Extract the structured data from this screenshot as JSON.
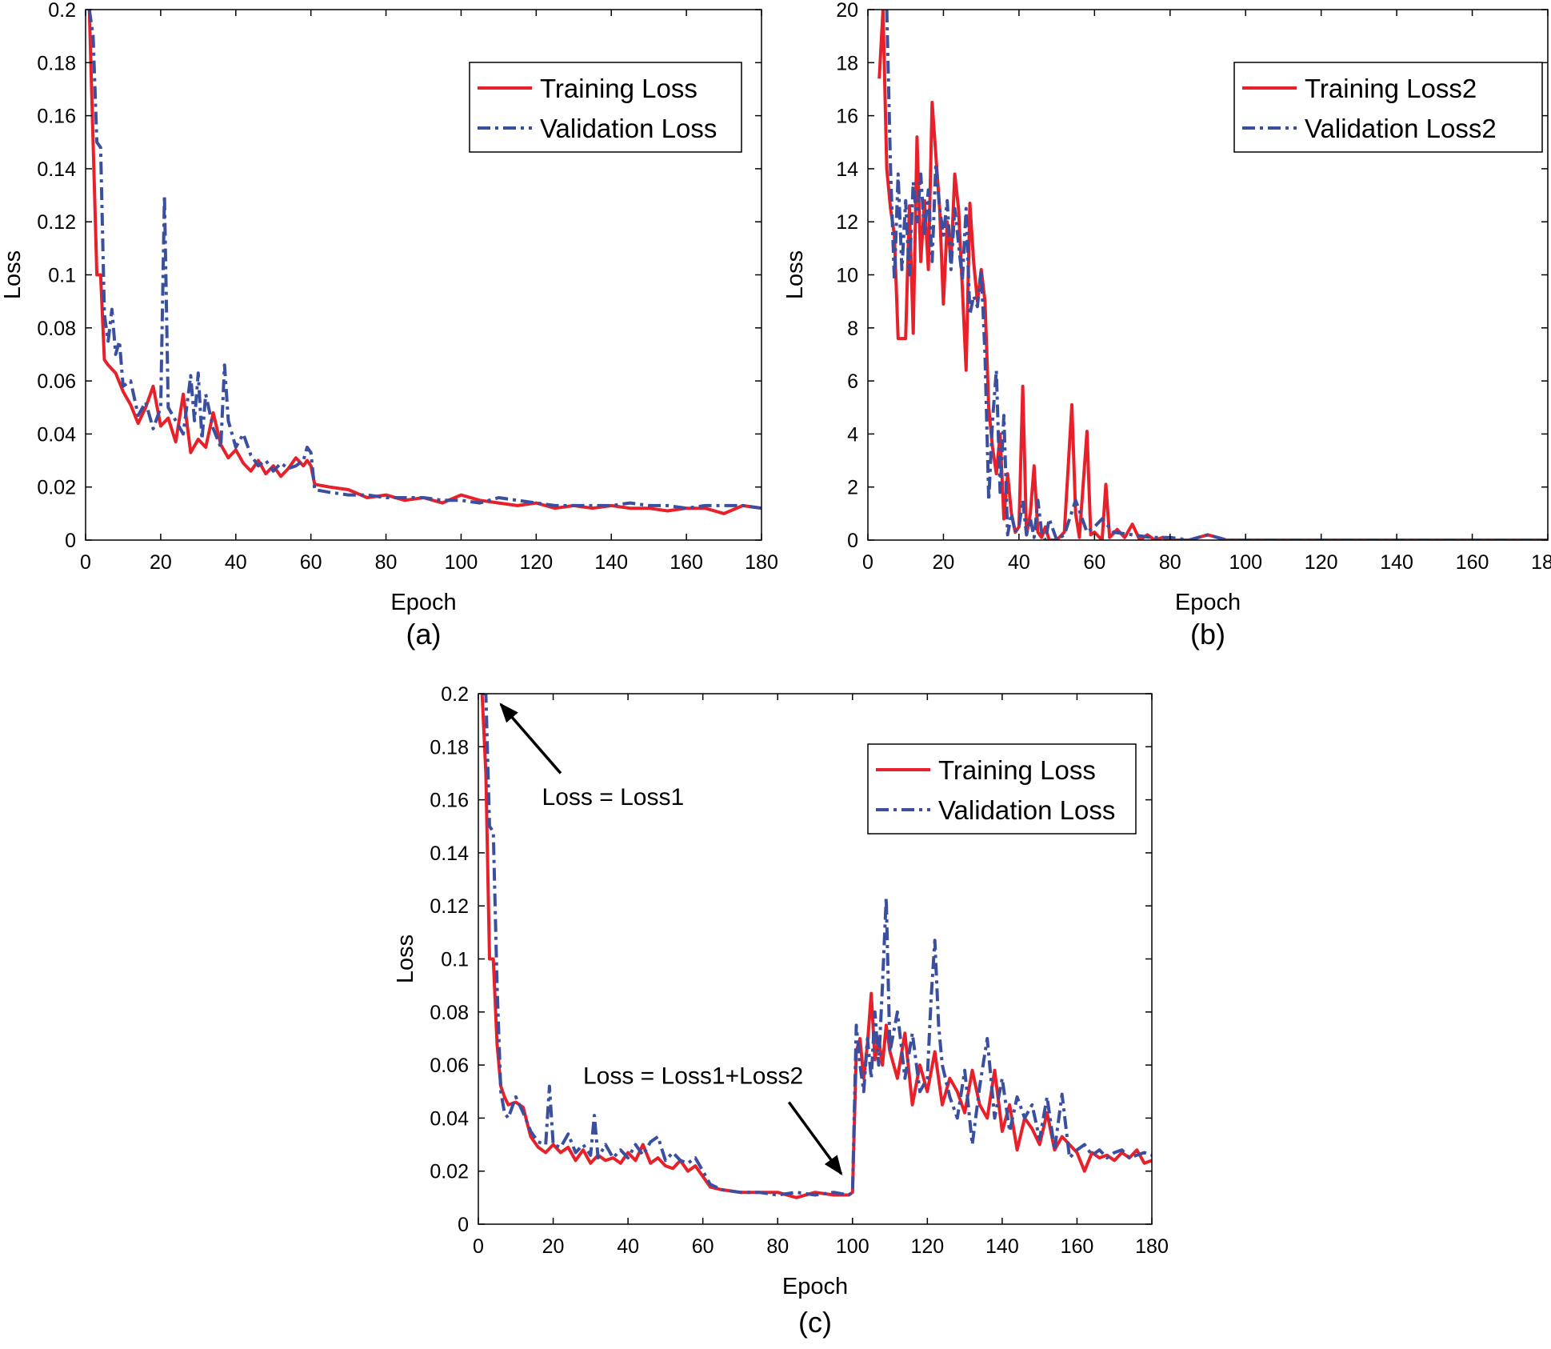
{
  "colors": {
    "training": "#e8202a",
    "validation": "#3a4fa0",
    "axis": "#000000"
  },
  "chart_data": [
    {
      "id": "a",
      "type": "line",
      "panel_label": "(a)",
      "xlabel": "Epoch",
      "ylabel": "Loss",
      "xlim": [
        0,
        180
      ],
      "ylim": [
        0,
        0.2
      ],
      "xticks": [
        0,
        20,
        40,
        60,
        80,
        100,
        120,
        140,
        160,
        180
      ],
      "yticks": [
        0,
        0.02,
        0.04,
        0.06,
        0.08,
        0.1,
        0.12,
        0.14,
        0.16,
        0.18,
        0.2
      ],
      "ytick_labels": [
        "0",
        "0.02",
        "0.04",
        "0.06",
        "0.08",
        "0.1",
        "0.12",
        "0.14",
        "0.16",
        "0.18",
        "0.2"
      ],
      "grid": false,
      "legend_position": "top-right",
      "series": [
        {
          "name": "Training Loss",
          "style": "solid",
          "x": [
            1,
            2,
            3,
            4,
            5,
            6,
            8,
            10,
            12,
            14,
            16,
            18,
            20,
            22,
            24,
            26,
            28,
            30,
            32,
            34,
            36,
            38,
            40,
            42,
            44,
            46,
            48,
            50,
            52,
            54,
            56,
            58,
            59,
            60,
            61,
            65,
            70,
            75,
            80,
            85,
            90,
            95,
            100,
            105,
            110,
            115,
            120,
            125,
            130,
            135,
            140,
            145,
            150,
            155,
            160,
            165,
            170,
            175,
            180
          ],
          "values": [
            0.2,
            0.15,
            0.1,
            0.1,
            0.068,
            0.066,
            0.063,
            0.056,
            0.051,
            0.044,
            0.05,
            0.058,
            0.043,
            0.046,
            0.037,
            0.055,
            0.033,
            0.038,
            0.035,
            0.048,
            0.036,
            0.031,
            0.034,
            0.029,
            0.026,
            0.03,
            0.025,
            0.028,
            0.024,
            0.027,
            0.031,
            0.028,
            0.03,
            0.028,
            0.021,
            0.02,
            0.019,
            0.016,
            0.017,
            0.015,
            0.016,
            0.014,
            0.017,
            0.015,
            0.014,
            0.013,
            0.014,
            0.012,
            0.013,
            0.012,
            0.013,
            0.012,
            0.012,
            0.011,
            0.012,
            0.012,
            0.01,
            0.013,
            0.012
          ]
        },
        {
          "name": "Validation Loss",
          "style": "dashdot",
          "x": [
            1,
            2,
            3,
            4,
            5,
            6,
            7,
            8,
            9,
            10,
            12,
            14,
            16,
            18,
            20,
            21,
            22,
            24,
            26,
            28,
            29,
            30,
            31,
            32,
            34,
            36,
            37,
            38,
            40,
            42,
            44,
            46,
            48,
            50,
            52,
            54,
            56,
            58,
            59,
            60,
            61,
            65,
            70,
            75,
            80,
            85,
            90,
            95,
            100,
            105,
            110,
            115,
            120,
            125,
            130,
            135,
            140,
            145,
            150,
            155,
            160,
            165,
            170,
            175,
            180
          ],
          "values": [
            0.2,
            0.19,
            0.15,
            0.148,
            0.085,
            0.075,
            0.087,
            0.07,
            0.075,
            0.058,
            0.06,
            0.047,
            0.052,
            0.042,
            0.05,
            0.13,
            0.05,
            0.045,
            0.04,
            0.062,
            0.045,
            0.063,
            0.038,
            0.055,
            0.042,
            0.035,
            0.066,
            0.045,
            0.035,
            0.04,
            0.032,
            0.028,
            0.03,
            0.026,
            0.029,
            0.027,
            0.028,
            0.03,
            0.035,
            0.033,
            0.019,
            0.018,
            0.017,
            0.017,
            0.016,
            0.016,
            0.016,
            0.015,
            0.015,
            0.014,
            0.016,
            0.015,
            0.014,
            0.013,
            0.013,
            0.013,
            0.013,
            0.014,
            0.013,
            0.013,
            0.012,
            0.013,
            0.013,
            0.013,
            0.012
          ]
        }
      ]
    },
    {
      "id": "b",
      "type": "line",
      "panel_label": "(b)",
      "xlabel": "Epoch",
      "ylabel": "Loss",
      "xlim": [
        0,
        180
      ],
      "ylim": [
        0,
        20
      ],
      "xticks": [
        0,
        20,
        40,
        60,
        80,
        100,
        120,
        140,
        160,
        180
      ],
      "yticks": [
        0,
        2,
        4,
        6,
        8,
        10,
        12,
        14,
        16,
        18,
        20
      ],
      "ytick_labels": [
        "0",
        "2",
        "4",
        "6",
        "8",
        "10",
        "12",
        "14",
        "16",
        "18",
        "20"
      ],
      "grid": false,
      "legend_position": "top-right",
      "series": [
        {
          "name": "Training  Loss2",
          "style": "solid",
          "x": [
            3,
            4,
            5,
            6,
            7,
            8,
            9,
            10,
            11,
            12,
            13,
            14,
            15,
            16,
            17,
            18,
            19,
            20,
            21,
            22,
            23,
            24,
            25,
            26,
            27,
            28,
            29,
            30,
            31,
            32,
            33,
            34,
            35,
            36,
            37,
            38,
            39,
            40,
            41,
            42,
            43,
            44,
            45,
            46,
            47,
            48,
            50,
            52,
            54,
            55,
            56,
            58,
            59,
            60,
            62,
            63,
            64,
            66,
            68,
            70,
            72,
            74,
            76,
            78,
            80,
            85,
            90,
            95,
            100,
            110,
            120,
            130,
            140,
            150,
            160,
            170,
            180
          ],
          "values": [
            17.4,
            20,
            14,
            12.5,
            11.5,
            7.6,
            7.6,
            7.6,
            12.6,
            7.8,
            15.2,
            10.5,
            12.8,
            10.2,
            16.5,
            14.5,
            12.5,
            8.9,
            12.0,
            10.5,
            13.8,
            12.5,
            9.5,
            6.4,
            12.7,
            10.5,
            9.0,
            10.2,
            9.0,
            5.0,
            3.5,
            2.5,
            4.0,
            0.8,
            2.5,
            1.0,
            0.3,
            0.5,
            5.8,
            0.2,
            1.0,
            2.8,
            0.3,
            0.1,
            0.5,
            0.0,
            0.0,
            0.3,
            5.1,
            1.0,
            0.1,
            4.1,
            0.2,
            0.3,
            0.0,
            2.1,
            0.1,
            0.4,
            0.1,
            0.6,
            0.0,
            0.2,
            0.0,
            0.1,
            0.0,
            0.0,
            0.2,
            0.0,
            0.0,
            0.0,
            0.0,
            0.0,
            0.0,
            0.0,
            0.0,
            0.0,
            0.0
          ]
        },
        {
          "name": "Validation Loss2",
          "style": "dashdot",
          "x": [
            5,
            6,
            7,
            8,
            9,
            10,
            11,
            12,
            13,
            14,
            15,
            16,
            17,
            18,
            19,
            20,
            21,
            22,
            23,
            24,
            25,
            26,
            27,
            28,
            29,
            30,
            31,
            32,
            33,
            34,
            35,
            36,
            37,
            38,
            39,
            40,
            41,
            42,
            43,
            44,
            45,
            46,
            47,
            48,
            50,
            52,
            55,
            58,
            60,
            62,
            65,
            70,
            75,
            80,
            85,
            90,
            95,
            100,
            110,
            120,
            130,
            140,
            150,
            160,
            170,
            180
          ],
          "values": [
            20,
            14.0,
            9.8,
            13.8,
            10.2,
            12.8,
            10.0,
            13.5,
            12.0,
            13.8,
            11.5,
            13.2,
            10.5,
            14.2,
            12.5,
            11.5,
            12.8,
            10.2,
            12.5,
            11.2,
            9.8,
            12.5,
            8.5,
            9.2,
            8.8,
            10.2,
            7.0,
            1.5,
            4.5,
            6.4,
            1.8,
            4.7,
            0.2,
            1.0,
            0.3,
            0.5,
            1.5,
            0.2,
            0.8,
            0.1,
            1.5,
            0.3,
            0.0,
            0.8,
            0.0,
            0.2,
            1.5,
            0.3,
            0.5,
            0.8,
            0.3,
            0.2,
            0.1,
            0.1,
            0.0,
            0.2,
            0.0,
            0.0,
            0.0,
            0.0,
            0.0,
            0.0,
            0.0,
            0.0,
            0.0,
            0.0
          ]
        }
      ]
    },
    {
      "id": "c",
      "type": "line",
      "panel_label": "(c)",
      "xlabel": "Epoch",
      "ylabel": "Loss",
      "xlim": [
        0,
        180
      ],
      "ylim": [
        0,
        0.2
      ],
      "xticks": [
        0,
        20,
        40,
        60,
        80,
        100,
        120,
        140,
        160,
        180
      ],
      "yticks": [
        0,
        0.02,
        0.04,
        0.06,
        0.08,
        0.1,
        0.12,
        0.14,
        0.16,
        0.18,
        0.2
      ],
      "ytick_labels": [
        "0",
        "0.02",
        "0.04",
        "0.06",
        "0.08",
        "0.1",
        "0.12",
        "0.14",
        "0.16",
        "0.18",
        "0.2"
      ],
      "grid": false,
      "legend_position": "top-right",
      "annotations": [
        {
          "text": "Loss = Loss1",
          "text_x": 17,
          "text_y": 0.158,
          "arrow_from": [
            22,
            0.17
          ],
          "arrow_to": [
            6,
            0.196
          ]
        },
        {
          "text": "Loss = Loss1+Loss2",
          "text_x": 28,
          "text_y": 0.053,
          "arrow_from": [
            83,
            0.046
          ],
          "arrow_to": [
            97,
            0.019
          ]
        }
      ],
      "series": [
        {
          "name": "Training Loss",
          "style": "solid",
          "x": [
            1,
            2,
            3,
            4,
            5,
            6,
            7,
            8,
            10,
            12,
            14,
            16,
            18,
            20,
            22,
            24,
            26,
            28,
            30,
            32,
            34,
            36,
            38,
            40,
            42,
            44,
            46,
            48,
            50,
            52,
            54,
            56,
            58,
            60,
            62,
            65,
            70,
            75,
            80,
            85,
            90,
            95,
            99,
            100,
            101,
            102,
            103,
            104,
            105,
            106,
            107,
            108,
            109,
            110,
            112,
            114,
            116,
            118,
            120,
            122,
            124,
            126,
            128,
            130,
            132,
            134,
            136,
            138,
            140,
            142,
            144,
            146,
            148,
            150,
            152,
            154,
            156,
            158,
            160,
            162,
            164,
            166,
            168,
            170,
            172,
            174,
            176,
            178,
            180
          ],
          "values": [
            0.2,
            0.17,
            0.1,
            0.1,
            0.068,
            0.052,
            0.048,
            0.045,
            0.046,
            0.044,
            0.033,
            0.029,
            0.027,
            0.03,
            0.027,
            0.029,
            0.024,
            0.028,
            0.023,
            0.026,
            0.024,
            0.025,
            0.023,
            0.027,
            0.024,
            0.03,
            0.023,
            0.025,
            0.022,
            0.021,
            0.024,
            0.02,
            0.022,
            0.018,
            0.014,
            0.013,
            0.012,
            0.012,
            0.012,
            0.01,
            0.012,
            0.011,
            0.011,
            0.012,
            0.065,
            0.07,
            0.055,
            0.068,
            0.087,
            0.062,
            0.07,
            0.06,
            0.075,
            0.065,
            0.055,
            0.072,
            0.045,
            0.06,
            0.05,
            0.065,
            0.045,
            0.055,
            0.05,
            0.042,
            0.058,
            0.045,
            0.04,
            0.058,
            0.035,
            0.045,
            0.028,
            0.04,
            0.036,
            0.03,
            0.042,
            0.028,
            0.033,
            0.03,
            0.027,
            0.02,
            0.027,
            0.025,
            0.026,
            0.024,
            0.027,
            0.025,
            0.028,
            0.023,
            0.024
          ]
        },
        {
          "name": "Validation Loss",
          "style": "dashdot",
          "x": [
            1,
            2,
            3,
            4,
            5,
            6,
            7,
            8,
            10,
            12,
            14,
            16,
            18,
            19,
            20,
            22,
            24,
            26,
            28,
            30,
            31,
            32,
            34,
            36,
            38,
            40,
            42,
            44,
            46,
            48,
            50,
            52,
            54,
            56,
            58,
            60,
            62,
            65,
            70,
            75,
            80,
            85,
            90,
            95,
            99,
            100,
            101,
            102,
            103,
            104,
            105,
            106,
            107,
            108,
            109,
            110,
            112,
            114,
            116,
            118,
            120,
            121,
            122,
            123,
            124,
            126,
            128,
            130,
            132,
            134,
            136,
            138,
            140,
            142,
            144,
            146,
            148,
            150,
            152,
            154,
            156,
            158,
            160,
            162,
            164,
            166,
            168,
            170,
            172,
            174,
            176,
            178,
            180
          ],
          "values": [
            0.2,
            0.2,
            0.15,
            0.148,
            0.09,
            0.05,
            0.042,
            0.04,
            0.048,
            0.042,
            0.035,
            0.031,
            0.03,
            0.052,
            0.03,
            0.029,
            0.034,
            0.027,
            0.03,
            0.026,
            0.041,
            0.025,
            0.03,
            0.025,
            0.028,
            0.025,
            0.03,
            0.026,
            0.031,
            0.033,
            0.024,
            0.027,
            0.024,
            0.023,
            0.025,
            0.02,
            0.015,
            0.013,
            0.012,
            0.012,
            0.011,
            0.012,
            0.011,
            0.012,
            0.011,
            0.012,
            0.075,
            0.06,
            0.05,
            0.07,
            0.055,
            0.08,
            0.06,
            0.09,
            0.123,
            0.065,
            0.08,
            0.055,
            0.072,
            0.05,
            0.055,
            0.085,
            0.107,
            0.075,
            0.06,
            0.048,
            0.04,
            0.058,
            0.03,
            0.052,
            0.07,
            0.04,
            0.055,
            0.035,
            0.048,
            0.04,
            0.045,
            0.032,
            0.048,
            0.028,
            0.049,
            0.025,
            0.028,
            0.03,
            0.026,
            0.028,
            0.025,
            0.027,
            0.028,
            0.025,
            0.026,
            0.027,
            0.026
          ]
        }
      ]
    }
  ]
}
